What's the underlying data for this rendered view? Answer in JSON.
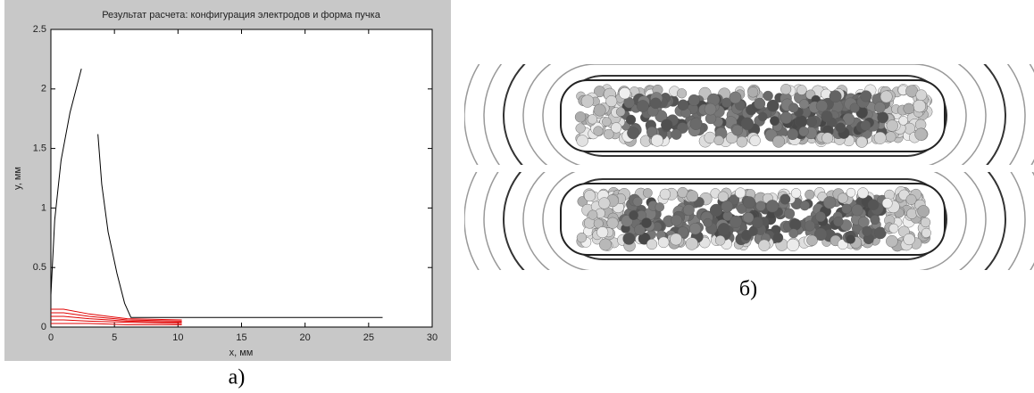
{
  "chart_data": {
    "type": "line",
    "title": "Результат расчета: конфигурация электродов и форма пучка",
    "xlabel": "x, мм",
    "ylabel": "y, мм",
    "xlim": [
      0,
      30
    ],
    "ylim": [
      0,
      2.5
    ],
    "xticks": [
      0,
      5,
      10,
      15,
      20,
      25,
      30
    ],
    "yticks": [
      0,
      0.5,
      1,
      1.5,
      2,
      2.5
    ],
    "grid": false,
    "series": [
      {
        "color": "#000000",
        "x": [
          0,
          0.3,
          0.8,
          1.5,
          2.4
        ],
        "values": [
          0.27,
          0.9,
          1.4,
          1.8,
          2.17
        ]
      },
      {
        "color": "#000000",
        "x": [
          3.7,
          4.0,
          4.5,
          5.2,
          5.8,
          6.3,
          26.1
        ],
        "values": [
          1.62,
          1.2,
          0.8,
          0.45,
          0.2,
          0.08,
          0.08
        ]
      },
      {
        "color": "#e00000",
        "x": [
          0,
          1,
          3,
          6,
          10.3
        ],
        "values": [
          0.15,
          0.15,
          0.11,
          0.07,
          0.06
        ]
      },
      {
        "color": "#e00000",
        "x": [
          0,
          1,
          3,
          6,
          10.3
        ],
        "values": [
          0.12,
          0.12,
          0.09,
          0.06,
          0.05
        ]
      },
      {
        "color": "#e00000",
        "x": [
          0,
          1,
          3,
          6,
          10.3
        ],
        "values": [
          0.09,
          0.09,
          0.07,
          0.05,
          0.04
        ]
      },
      {
        "color": "#e00000",
        "x": [
          0,
          1,
          3,
          6,
          10.3
        ],
        "values": [
          0.06,
          0.06,
          0.05,
          0.04,
          0.03
        ]
      },
      {
        "color": "#e00000",
        "x": [
          0,
          1,
          3,
          6,
          10.3
        ],
        "values": [
          0.03,
          0.03,
          0.03,
          0.02,
          0.02
        ]
      }
    ]
  },
  "panel_a": {
    "caption": "а)"
  },
  "panel_b": {
    "caption": "б)"
  }
}
